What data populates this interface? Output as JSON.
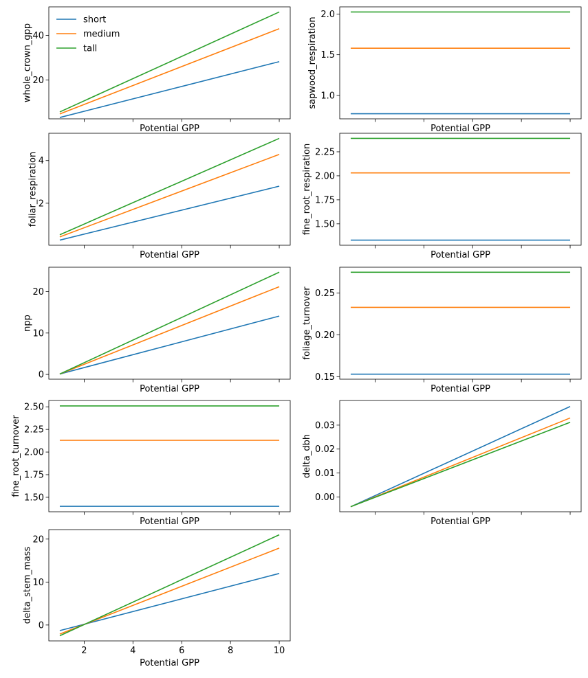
{
  "chart_data": {
    "type": "line",
    "x": [
      1,
      10
    ],
    "xlabel": "Potential GPP",
    "legend": {
      "entries": [
        "short",
        "medium",
        "tall"
      ],
      "location": "upper-left"
    },
    "colors": {
      "short": "#1f77b4",
      "medium": "#ff7f0e",
      "tall": "#2ca02c"
    },
    "grid": false,
    "panels": [
      {
        "ylabel": "whole_crown_gpp",
        "xlim": [
          0.55,
          10.45
        ],
        "ylim": [
          2.5,
          52.8
        ],
        "yticks": [
          20,
          40
        ],
        "ytick_labels": [
          "20",
          "40"
        ],
        "xticks": [
          2,
          4,
          6,
          8,
          10
        ],
        "xtick_labels": [],
        "series": [
          {
            "name": "short",
            "values": [
              3.1,
              28.2
            ]
          },
          {
            "name": "medium",
            "values": [
              4.7,
              43.0
            ]
          },
          {
            "name": "tall",
            "values": [
              5.6,
              50.5
            ]
          }
        ]
      },
      {
        "ylabel": "sapwood_respiration",
        "xlim": [
          0.55,
          10.45
        ],
        "ylim": [
          0.712,
          2.088
        ],
        "yticks": [
          1.0,
          1.5,
          2.0
        ],
        "ytick_labels": [
          "1.0",
          "1.5",
          "2.0"
        ],
        "xticks": [
          2,
          4,
          6,
          8,
          10
        ],
        "xtick_labels": [],
        "series": [
          {
            "name": "short",
            "values": [
              0.775,
              0.775
            ]
          },
          {
            "name": "medium",
            "values": [
              1.58,
              1.58
            ]
          },
          {
            "name": "tall",
            "values": [
              2.025,
              2.025
            ]
          }
        ]
      },
      {
        "ylabel": "foliar_respiration",
        "xlim": [
          0.55,
          10.45
        ],
        "ylim": [
          0.03,
          5.28
        ],
        "yticks": [
          2,
          4
        ],
        "ytick_labels": [
          "2",
          "4"
        ],
        "xticks": [
          2,
          4,
          6,
          8,
          10
        ],
        "xtick_labels": [],
        "series": [
          {
            "name": "short",
            "values": [
              0.27,
              2.8
            ]
          },
          {
            "name": "medium",
            "values": [
              0.42,
              4.29
            ]
          },
          {
            "name": "tall",
            "values": [
              0.52,
              5.04
            ]
          }
        ]
      },
      {
        "ylabel": "fine_root_respiration",
        "xlim": [
          0.55,
          10.45
        ],
        "ylim": [
          1.277,
          2.443
        ],
        "yticks": [
          1.5,
          1.75,
          2.0,
          2.25
        ],
        "ytick_labels": [
          "1.50",
          "1.75",
          "2.00",
          "2.25"
        ],
        "xticks": [
          2,
          4,
          6,
          8,
          10
        ],
        "xtick_labels": [],
        "series": [
          {
            "name": "short",
            "values": [
              1.33,
              1.33
            ]
          },
          {
            "name": "medium",
            "values": [
              2.03,
              2.03
            ]
          },
          {
            "name": "tall",
            "values": [
              2.39,
              2.39
            ]
          }
        ]
      },
      {
        "ylabel": "npp",
        "xlim": [
          0.55,
          10.45
        ],
        "ylim": [
          -1.15,
          25.9
        ],
        "yticks": [
          0,
          10,
          20
        ],
        "ytick_labels": [
          "0",
          "10",
          "20"
        ],
        "xticks": [
          2,
          4,
          6,
          8,
          10
        ],
        "xtick_labels": [],
        "series": [
          {
            "name": "short",
            "values": [
              0.1,
              14.1
            ]
          },
          {
            "name": "medium",
            "values": [
              0.1,
              21.2
            ]
          },
          {
            "name": "tall",
            "values": [
              0.1,
              24.7
            ]
          }
        ]
      },
      {
        "ylabel": "foliage_turnover",
        "xlim": [
          0.55,
          10.45
        ],
        "ylim": [
          0.147,
          0.281
        ],
        "yticks": [
          0.15,
          0.2,
          0.25
        ],
        "ytick_labels": [
          "0.15",
          "0.20",
          "0.25"
        ],
        "xticks": [
          2,
          4,
          6,
          8,
          10
        ],
        "xtick_labels": [],
        "series": [
          {
            "name": "short",
            "values": [
              0.153,
              0.153
            ]
          },
          {
            "name": "medium",
            "values": [
              0.233,
              0.233
            ]
          },
          {
            "name": "tall",
            "values": [
              0.275,
              0.275
            ]
          }
        ]
      },
      {
        "ylabel": "fine_root_turnover",
        "xlim": [
          0.55,
          10.45
        ],
        "ylim": [
          1.34,
          2.57
        ],
        "yticks": [
          1.5,
          1.75,
          2.0,
          2.25,
          2.5
        ],
        "ytick_labels": [
          "1.50",
          "1.75",
          "2.00",
          "2.25",
          "2.50"
        ],
        "xticks": [
          2,
          4,
          6,
          8,
          10
        ],
        "xtick_labels": [],
        "series": [
          {
            "name": "short",
            "values": [
              1.4,
              1.4
            ]
          },
          {
            "name": "medium",
            "values": [
              2.13,
              2.13
            ]
          },
          {
            "name": "tall",
            "values": [
              2.51,
              2.51
            ]
          }
        ]
      },
      {
        "ylabel": "delta_dbh",
        "xlim": [
          0.55,
          10.45
        ],
        "ylim": [
          -0.0062,
          0.0403
        ],
        "yticks": [
          0.0,
          0.01,
          0.02,
          0.03
        ],
        "ytick_labels": [
          "0.00",
          "0.01",
          "0.02",
          "0.03"
        ],
        "xticks": [
          2,
          4,
          6,
          8,
          10
        ],
        "xtick_labels": [],
        "series": [
          {
            "name": "short",
            "values": [
              -0.0041,
              0.0378
            ]
          },
          {
            "name": "medium",
            "values": [
              -0.0041,
              0.033
            ]
          },
          {
            "name": "tall",
            "values": [
              -0.0041,
              0.0312
            ]
          }
        ]
      },
      {
        "ylabel": "delta_stem_mass",
        "xlim": [
          0.55,
          10.45
        ],
        "ylim": [
          -3.7,
          22.2
        ],
        "yticks": [
          0,
          10,
          20
        ],
        "ytick_labels": [
          "0",
          "10",
          "20"
        ],
        "xticks": [
          2,
          4,
          6,
          8,
          10
        ],
        "xtick_labels": [
          "2",
          "4",
          "6",
          "8",
          "10"
        ],
        "series": [
          {
            "name": "short",
            "values": [
              -1.3,
              12.0
            ]
          },
          {
            "name": "medium",
            "values": [
              -2.1,
              17.9
            ]
          },
          {
            "name": "tall",
            "values": [
              -2.5,
              21.0
            ]
          }
        ]
      }
    ]
  }
}
